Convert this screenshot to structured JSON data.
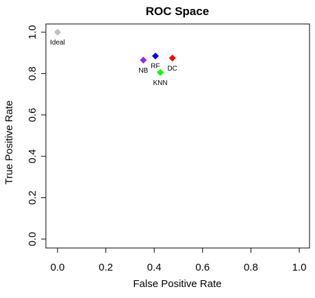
{
  "chart_data": {
    "type": "scatter",
    "title": "ROC Space",
    "xlabel": "False Positive Rate",
    "ylabel": "True Positive Rate",
    "xlim": [
      0,
      1
    ],
    "ylim": [
      0,
      1
    ],
    "xticks": [
      "0.0",
      "0.2",
      "0.4",
      "0.6",
      "0.8",
      "1.0"
    ],
    "yticks": [
      "0.0",
      "0.2",
      "0.4",
      "0.6",
      "0.8",
      "1.0"
    ],
    "grid": false,
    "legend": "none",
    "points": [
      {
        "label": "Ideal",
        "x": 0.0,
        "y": 1.0,
        "color": "#bebebe",
        "label_position": "below"
      },
      {
        "label": "NB",
        "x": 0.355,
        "y": 0.865,
        "color": "#a020f0",
        "label_position": "below"
      },
      {
        "label": "RF",
        "x": 0.405,
        "y": 0.885,
        "color": "#0000ff",
        "label_position": "below"
      },
      {
        "label": "KNN",
        "x": 0.425,
        "y": 0.805,
        "color": "#00ff00",
        "label_position": "below"
      },
      {
        "label": "DC",
        "x": 0.475,
        "y": 0.875,
        "color": "#ff0000",
        "label_position": "below"
      }
    ]
  }
}
